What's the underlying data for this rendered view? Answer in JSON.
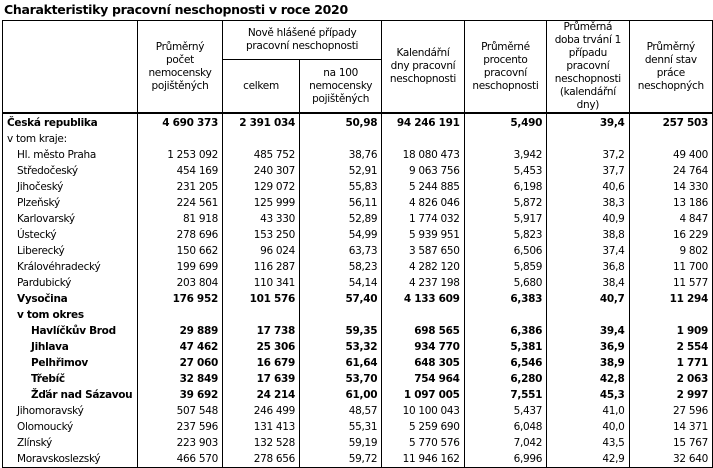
{
  "title": "Charakteristiky pracovní neschopnosti v roce 2020",
  "headers": {
    "c1": "Průměrný počet nemocensky pojištěných",
    "c2_group": "Nově hlášené případy pracovní neschopnosti",
    "c2a": "celkem",
    "c2b": "na 100 nemocensky pojištěných",
    "c3": "Kalendářní dny pracovní neschopnosti",
    "c4": "Průměrné procento pracovní neschopnosti",
    "c5": "Průměrná doba trvání 1 případu pracovní neschopnosti (kalendářní dny)",
    "c6": "Průměrný denní stav práce neschopných"
  },
  "rows": [
    {
      "label": "Česká republika",
      "indent": 0,
      "bold": true,
      "v": [
        "4 690 373",
        "2 391 034",
        "50,98",
        "94 246 191",
        "5,490",
        "39,4",
        "257 503"
      ]
    },
    {
      "label": "v tom kraje:",
      "indent": 0,
      "bold": false,
      "v": [
        "",
        "",
        "",
        "",
        "",
        "",
        ""
      ]
    },
    {
      "label": "Hl. město Praha",
      "indent": 1,
      "bold": false,
      "v": [
        "1 253 092",
        "485 752",
        "38,76",
        "18 080 473",
        "3,942",
        "37,2",
        "49 400"
      ]
    },
    {
      "label": "Středočeský",
      "indent": 1,
      "bold": false,
      "v": [
        "454 169",
        "240 307",
        "52,91",
        "9 063 756",
        "5,453",
        "37,7",
        "24 764"
      ]
    },
    {
      "label": "Jihočeský",
      "indent": 1,
      "bold": false,
      "v": [
        "231 205",
        "129 072",
        "55,83",
        "5 244 885",
        "6,198",
        "40,6",
        "14 330"
      ]
    },
    {
      "label": "Plzeňský",
      "indent": 1,
      "bold": false,
      "v": [
        "224 561",
        "125 999",
        "56,11",
        "4 826 046",
        "5,872",
        "38,3",
        "13 186"
      ]
    },
    {
      "label": "Karlovarský",
      "indent": 1,
      "bold": false,
      "v": [
        "81 918",
        "43 330",
        "52,89",
        "1 774 032",
        "5,917",
        "40,9",
        "4 847"
      ]
    },
    {
      "label": "Ústecký",
      "indent": 1,
      "bold": false,
      "v": [
        "278 696",
        "153 250",
        "54,99",
        "5 939 951",
        "5,823",
        "38,8",
        "16 229"
      ]
    },
    {
      "label": "Liberecký",
      "indent": 1,
      "bold": false,
      "v": [
        "150 662",
        "96 024",
        "63,73",
        "3 587 650",
        "6,506",
        "37,4",
        "9 802"
      ]
    },
    {
      "label": "Královéhradecký",
      "indent": 1,
      "bold": false,
      "v": [
        "199 699",
        "116 287",
        "58,23",
        "4 282 120",
        "5,859",
        "36,8",
        "11 700"
      ]
    },
    {
      "label": "Pardubický",
      "indent": 1,
      "bold": false,
      "v": [
        "203 804",
        "110 341",
        "54,14",
        "4 237 198",
        "5,680",
        "38,4",
        "11 577"
      ]
    },
    {
      "label": "Vysočina",
      "indent": 1,
      "bold": true,
      "v": [
        "176 952",
        "101 576",
        "57,40",
        "4 133 609",
        "6,383",
        "40,7",
        "11 294"
      ]
    },
    {
      "label": "v tom okres",
      "indent": 1,
      "bold": true,
      "v": [
        "",
        "",
        "",
        "",
        "",
        "",
        ""
      ]
    },
    {
      "label": "Havlíčkův  Brod",
      "indent": 2,
      "bold": true,
      "v": [
        "29 889",
        "17 738",
        "59,35",
        "698 565",
        "6,386",
        "39,4",
        "1 909"
      ]
    },
    {
      "label": "Jihlava",
      "indent": 2,
      "bold": true,
      "v": [
        "47 462",
        "25 306",
        "53,32",
        "934 770",
        "5,381",
        "36,9",
        "2 554"
      ]
    },
    {
      "label": "Pelhřimov",
      "indent": 2,
      "bold": true,
      "v": [
        "27 060",
        "16 679",
        "61,64",
        "648 305",
        "6,546",
        "38,9",
        "1 771"
      ]
    },
    {
      "label": "Třebíč",
      "indent": 2,
      "bold": true,
      "v": [
        "32 849",
        "17 639",
        "53,70",
        "754 964",
        "6,280",
        "42,8",
        "2 063"
      ]
    },
    {
      "label": "Žďár nad Sázavou",
      "indent": 2,
      "bold": true,
      "v": [
        "39 692",
        "24 214",
        "61,00",
        "1 097 005",
        "7,551",
        "45,3",
        "2 997"
      ]
    },
    {
      "label": "Jihomoravský",
      "indent": 1,
      "bold": false,
      "v": [
        "507 548",
        "246 499",
        "48,57",
        "10 100 043",
        "5,437",
        "41,0",
        "27 596"
      ]
    },
    {
      "label": "Olomoucký",
      "indent": 1,
      "bold": false,
      "v": [
        "237 596",
        "131 413",
        "55,31",
        "5 259 690",
        "6,048",
        "40,0",
        "14 371"
      ]
    },
    {
      "label": "Zlínský",
      "indent": 1,
      "bold": false,
      "v": [
        "223 903",
        "132 528",
        "59,19",
        "5 770 576",
        "7,042",
        "43,5",
        "15 767"
      ]
    },
    {
      "label": "Moravskoslezský",
      "indent": 1,
      "bold": false,
      "v": [
        "466 570",
        "278 656",
        "59,72",
        "11 946 162",
        "6,996",
        "42,9",
        "32 640"
      ]
    }
  ]
}
